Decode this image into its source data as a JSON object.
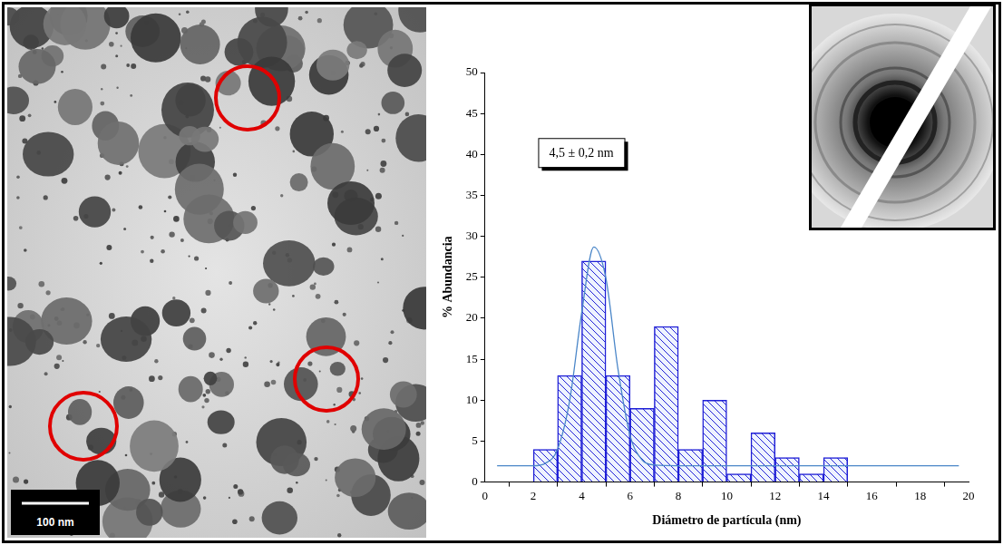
{
  "scale_bar": "100 nm",
  "chart_data": {
    "type": "histogram",
    "x_label": "Diámetro de partícula (nm)",
    "y_label": "% Abundancia",
    "annotation": "4,5 ± 0,2 nm",
    "bins": [
      2,
      3,
      4,
      5,
      6,
      7,
      8,
      9,
      10,
      11,
      12,
      13,
      14,
      15
    ],
    "values": [
      4,
      13,
      27,
      13,
      9,
      19,
      4,
      10,
      1,
      6,
      3,
      1,
      3
    ],
    "color": "#1f1fd6",
    "fit": {
      "type": "line",
      "color": "#4a86c8",
      "x": [
        0.5,
        2,
        2.5,
        3,
        3.5,
        4,
        4.5,
        5,
        5.5,
        6,
        6.5,
        7,
        8,
        10,
        15,
        19.6
      ],
      "values": [
        2,
        2,
        2.3,
        4,
        9.9,
        20.7,
        28.7,
        24.9,
        13.8,
        5.7,
        2.7,
        2.1,
        2,
        2,
        2,
        2
      ]
    },
    "xlim": [
      0,
      20
    ],
    "xticks": [
      0,
      2,
      4,
      6,
      8,
      10,
      12,
      14,
      16,
      18,
      20
    ],
    "ylim": [
      0,
      50
    ],
    "yticks": [
      0,
      5,
      10,
      15,
      20,
      25,
      30,
      35,
      40,
      45,
      50
    ],
    "grid": false
  }
}
